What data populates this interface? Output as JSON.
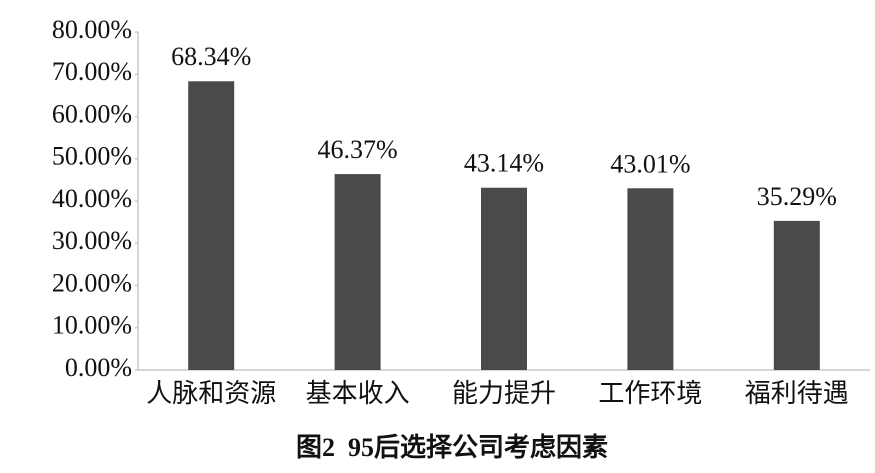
{
  "chart_data": {
    "type": "bar",
    "title": "图2  95后选择公司考虑因素",
    "categories": [
      "人脉和资源",
      "基本收入",
      "能力提升",
      "工作环境",
      "福利待遇"
    ],
    "values": [
      68.34,
      46.37,
      43.14,
      43.01,
      35.29
    ],
    "value_labels": [
      "68.34%",
      "46.37%",
      "43.14%",
      "43.01%",
      "35.29%"
    ],
    "color": "#4a4a4a",
    "ylim": [
      0,
      80
    ],
    "yticks": [
      {
        "value": 0,
        "label": "0.00%"
      },
      {
        "value": 10,
        "label": "10.00%"
      },
      {
        "value": 20,
        "label": "20.00%"
      },
      {
        "value": 30,
        "label": "30.00%"
      },
      {
        "value": 40,
        "label": "40.00%"
      },
      {
        "value": 50,
        "label": "50.00%"
      },
      {
        "value": 60,
        "label": "60.00%"
      },
      {
        "value": 70,
        "label": "70.00%"
      },
      {
        "value": 80,
        "label": "80.00%"
      }
    ],
    "grid": false
  }
}
